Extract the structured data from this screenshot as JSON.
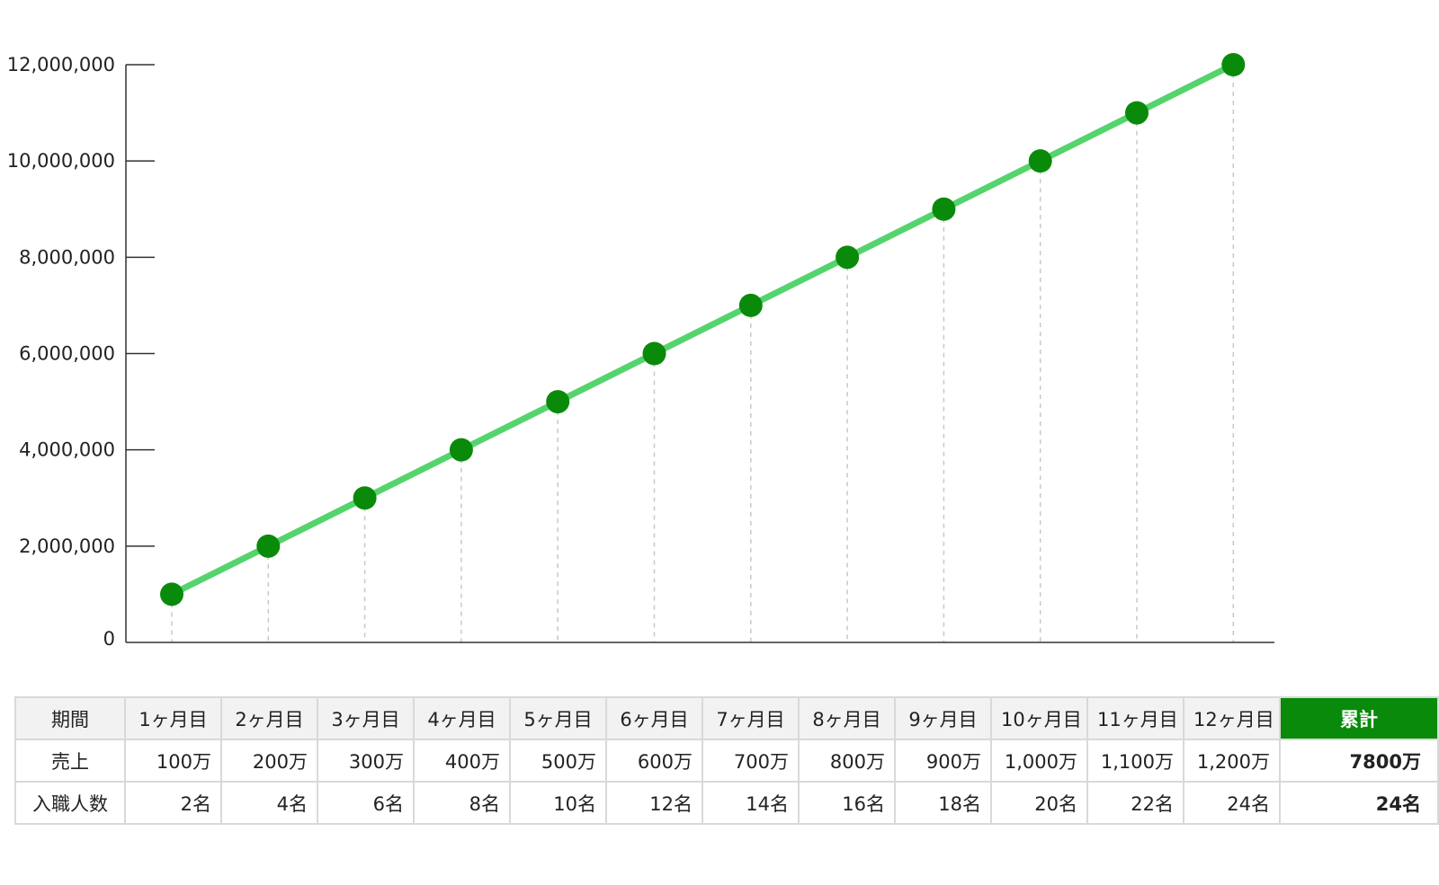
{
  "chart_data": {
    "type": "line",
    "x": [
      "1ヶ月目",
      "2ヶ月目",
      "3ヶ月目",
      "4ヶ月目",
      "5ヶ月目",
      "6ヶ月目",
      "7ヶ月目",
      "8ヶ月目",
      "9ヶ月目",
      "10ヶ月目",
      "11ヶ月目",
      "12ヶ月目"
    ],
    "series": [
      {
        "values": [
          1000000,
          2000000,
          3000000,
          4000000,
          5000000,
          6000000,
          7000000,
          8000000,
          9000000,
          10000000,
          11000000,
          12000000
        ]
      }
    ],
    "ylim": [
      0,
      12000000
    ],
    "yticks": [
      0,
      2000000,
      4000000,
      6000000,
      8000000,
      10000000,
      12000000
    ],
    "ytick_labels": [
      "0",
      "2,000,000",
      "4,000,000",
      "6,000,000",
      "8,000,000",
      "10,000,000",
      "12,000,000"
    ],
    "line_color": "#55d46e",
    "marker_color": "#0a8a0a",
    "grid": false,
    "drop_lines": true
  },
  "table": {
    "header": {
      "label": "期間",
      "months": [
        "1ヶ月目",
        "2ヶ月目",
        "3ヶ月目",
        "4ヶ月目",
        "5ヶ月目",
        "6ヶ月目",
        "7ヶ月目",
        "8ヶ月目",
        "9ヶ月目",
        "10ヶ月目",
        "11ヶ月目",
        "12ヶ月目"
      ],
      "total": "累計"
    },
    "rows": [
      {
        "label": "売上",
        "values": [
          "100万",
          "200万",
          "300万",
          "400万",
          "500万",
          "600万",
          "700万",
          "800万",
          "900万",
          "1,000万",
          "1,100万",
          "1,200万"
        ],
        "total": "7800万"
      },
      {
        "label": "入職人数",
        "values": [
          "2名",
          "4名",
          "6名",
          "8名",
          "10名",
          "12名",
          "14名",
          "16名",
          "18名",
          "20名",
          "22名",
          "24名"
        ],
        "total": "24名"
      }
    ],
    "total_header_color": "#0a8a0a"
  }
}
